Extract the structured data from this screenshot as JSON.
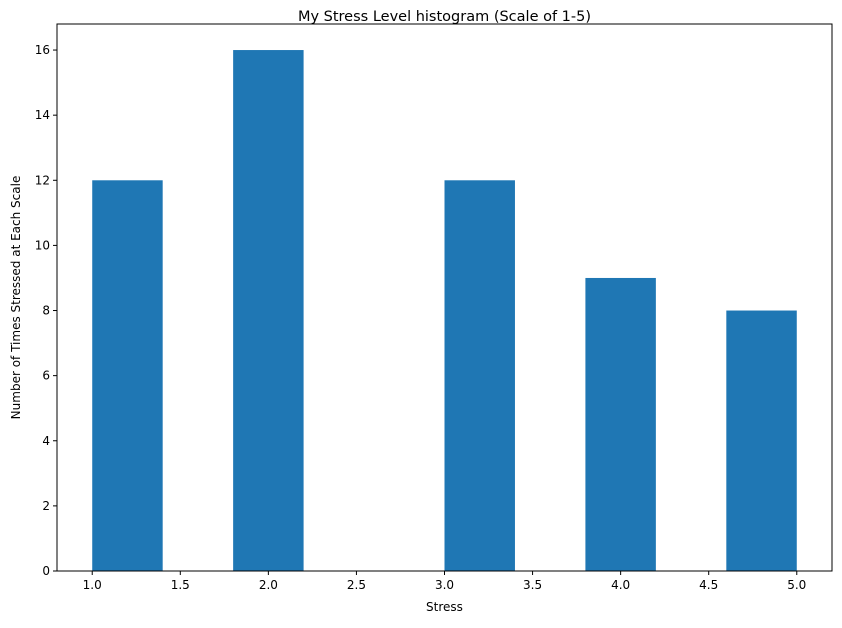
{
  "chart_data": {
    "type": "bar",
    "title": "My Stress Level histogram (Scale of 1-5)",
    "xlabel": "Stress",
    "ylabel": "Number of Times Stressed at Each Scale",
    "xlim": [
      0.8,
      5.2
    ],
    "ylim": [
      0,
      16.8
    ],
    "xticks": [
      1.0,
      1.5,
      2.0,
      2.5,
      3.0,
      3.5,
      4.0,
      4.5,
      5.0
    ],
    "yticks": [
      0,
      2,
      4,
      6,
      8,
      10,
      12,
      14,
      16
    ],
    "bins": [
      {
        "x0": 1.0,
        "x1": 1.4,
        "count": 12
      },
      {
        "x0": 1.4,
        "x1": 1.8,
        "count": 0
      },
      {
        "x0": 1.8,
        "x1": 2.2,
        "count": 16
      },
      {
        "x0": 2.2,
        "x1": 2.6,
        "count": 0
      },
      {
        "x0": 2.6,
        "x1": 3.0,
        "count": 0
      },
      {
        "x0": 3.0,
        "x1": 3.4,
        "count": 12
      },
      {
        "x0": 3.4,
        "x1": 3.8,
        "count": 0
      },
      {
        "x0": 3.8,
        "x1": 4.2,
        "count": 9
      },
      {
        "x0": 4.2,
        "x1": 4.6,
        "count": 0
      },
      {
        "x0": 4.6,
        "x1": 5.0,
        "count": 8
      }
    ],
    "bar_color": "#1f77b4",
    "grid": false,
    "legend": "none"
  }
}
